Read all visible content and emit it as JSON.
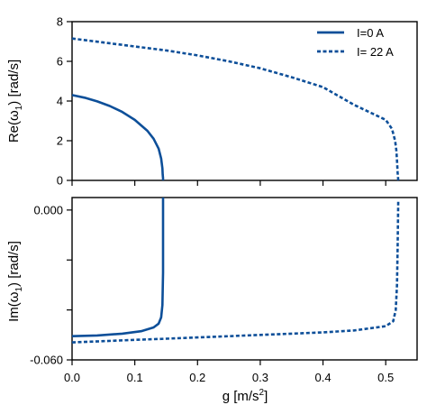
{
  "chart_data": [
    {
      "type": "line",
      "panel": "top",
      "ylabel_main": "Re(ω",
      "ylabel_sub": "1",
      "ylabel_end": ") [rad/s]",
      "xlim": [
        0,
        0.55
      ],
      "ylim": [
        0,
        8
      ],
      "yticks": [
        0,
        2,
        4,
        6,
        8
      ],
      "ytick_labels": [
        "0",
        "2",
        "4",
        "6",
        "8"
      ],
      "series_color": "#0d4f99",
      "legend_position": "top-right",
      "series": [
        {
          "name": "I=0 A",
          "dash": "solid",
          "x": [
            0,
            0.02,
            0.04,
            0.06,
            0.08,
            0.1,
            0.12,
            0.13,
            0.138,
            0.142,
            0.144,
            0.1445,
            0.145,
            0.145
          ],
          "y": [
            4.3,
            4.17,
            3.98,
            3.75,
            3.45,
            3.05,
            2.5,
            2.1,
            1.6,
            1.1,
            0.6,
            0.3,
            0.1,
            0.0
          ]
        },
        {
          "name": "I= 22 A",
          "dash": "dashed",
          "x": [
            0,
            0.05,
            0.1,
            0.15,
            0.2,
            0.25,
            0.3,
            0.35,
            0.4,
            0.45,
            0.5,
            0.51,
            0.515,
            0.517,
            0.518,
            0.519,
            0.52
          ],
          "y": [
            7.15,
            6.95,
            6.75,
            6.55,
            6.3,
            6.0,
            5.65,
            5.2,
            4.7,
            3.8,
            3.05,
            2.6,
            2.0,
            1.5,
            1.0,
            0.4,
            0.0
          ]
        }
      ]
    },
    {
      "type": "line",
      "panel": "bottom",
      "ylabel_main": "Im(ω",
      "ylabel_sub": "1",
      "ylabel_end": ") [rad/s]",
      "xlabel_main": "g [m/s",
      "xlabel_sup": "2",
      "xlabel_end": "]",
      "xlim": [
        0,
        0.55
      ],
      "ylim": [
        -0.06,
        0.005
      ],
      "xticks": [
        0,
        0.1,
        0.2,
        0.3,
        0.4,
        0.5
      ],
      "xtick_labels": [
        "0.0",
        "0.1",
        "0.2",
        "0.3",
        "0.4",
        "0.5"
      ],
      "yticks": [
        -0.06,
        -0.04,
        -0.02,
        0.0
      ],
      "ytick_labels": [
        "-0.060",
        "",
        "",
        "0.000"
      ],
      "series_color": "#0d4f99",
      "series": [
        {
          "name": "I=0 A",
          "dash": "solid",
          "x": [
            0,
            0.04,
            0.08,
            0.11,
            0.13,
            0.138,
            0.142,
            0.144,
            0.145,
            0.145,
            0.145
          ],
          "y": [
            -0.0505,
            -0.0502,
            -0.0495,
            -0.0485,
            -0.047,
            -0.0455,
            -0.043,
            -0.038,
            -0.025,
            -0.01,
            0.005
          ]
        },
        {
          "name": "I= 22 A",
          "dash": "dashed",
          "x": [
            0,
            0.05,
            0.1,
            0.15,
            0.2,
            0.25,
            0.3,
            0.35,
            0.4,
            0.45,
            0.5,
            0.512,
            0.516,
            0.518,
            0.519,
            0.52
          ],
          "y": [
            -0.053,
            -0.0525,
            -0.052,
            -0.0515,
            -0.051,
            -0.0505,
            -0.05,
            -0.0495,
            -0.049,
            -0.0482,
            -0.0465,
            -0.0445,
            -0.04,
            -0.03,
            -0.015,
            0.004
          ]
        }
      ]
    }
  ]
}
